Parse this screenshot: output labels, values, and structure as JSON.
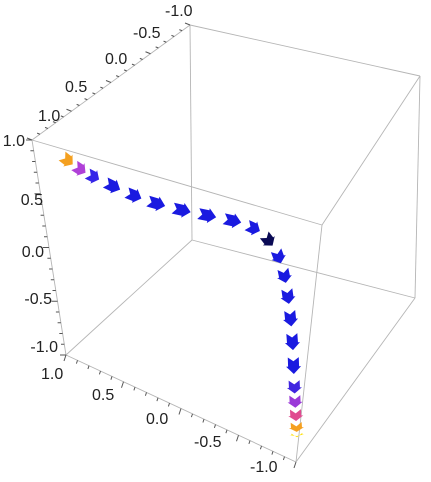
{
  "chart_data": {
    "type": "3d-arrow-curve",
    "title": "",
    "xlabel": "",
    "ylabel": "",
    "zlabel": "",
    "xlim": [
      -1.0,
      1.0
    ],
    "ylim": [
      -1.0,
      1.0
    ],
    "zlim": [
      -1.0,
      1.0
    ],
    "ticks_top": [
      "-1.0",
      "-0.5",
      "0.0",
      "0.5",
      "1.0"
    ],
    "ticks_left": [
      "1.0",
      "0.5",
      "0.0",
      "-0.5",
      "-1.0"
    ],
    "ticks_bottom": [
      "1.0",
      "0.5",
      "0.0",
      "-0.5",
      "-1.0"
    ],
    "grid": false,
    "box": true,
    "colors": {
      "main": "#1a1ae0",
      "gradient_start": "#f5a11e",
      "gradient_mid": "#c03ad0",
      "gradient_end": "#ffe000",
      "dark": "#0a0a55",
      "box": "#b5b5b5"
    },
    "segments": [
      {
        "t": 0.0,
        "color": "#f4a020"
      },
      {
        "t": 0.04,
        "color": "#b040d8"
      },
      {
        "t": 0.08,
        "color": "#3525e8"
      },
      {
        "t": 0.13,
        "color": "#1a1ae0"
      },
      {
        "t": 0.18,
        "color": "#1a1ae0"
      },
      {
        "t": 0.23,
        "color": "#1a1ae0"
      },
      {
        "t": 0.28,
        "color": "#1a1ae0"
      },
      {
        "t": 0.33,
        "color": "#1a1ae0"
      },
      {
        "t": 0.38,
        "color": "#1a1ae0"
      },
      {
        "t": 0.43,
        "color": "#1a1ae0"
      },
      {
        "t": 0.48,
        "color": "#0a0a55"
      },
      {
        "t": 0.53,
        "color": "#1a1ae0"
      },
      {
        "t": 0.58,
        "color": "#1a1ae0"
      },
      {
        "t": 0.63,
        "color": "#1a1ae0"
      },
      {
        "t": 0.68,
        "color": "#1a1ae0"
      },
      {
        "t": 0.73,
        "color": "#1a1ae0"
      },
      {
        "t": 0.78,
        "color": "#1a1ae0"
      },
      {
        "t": 0.83,
        "color": "#4025e0"
      },
      {
        "t": 0.87,
        "color": "#9a3ad8"
      },
      {
        "t": 0.91,
        "color": "#e04a90"
      },
      {
        "t": 0.95,
        "color": "#f5a020"
      },
      {
        "t": 0.99,
        "color": "#ffe000"
      }
    ]
  }
}
